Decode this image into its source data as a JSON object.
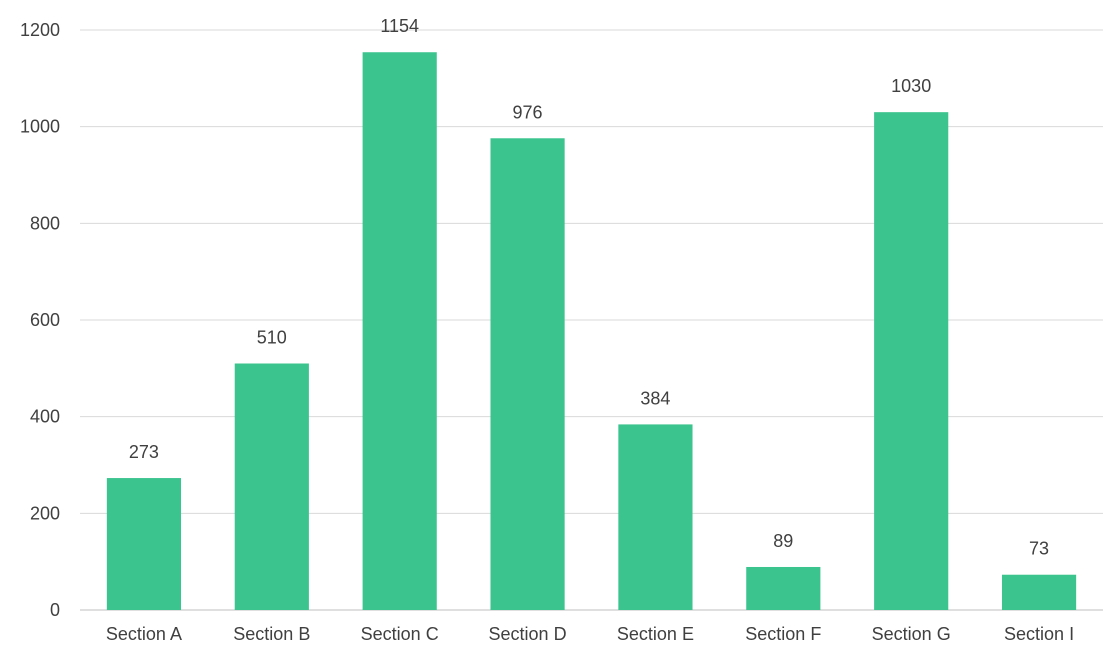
{
  "chart_data": {
    "type": "bar",
    "title": "",
    "xlabel": "",
    "ylabel": "",
    "categories": [
      "Section A",
      "Section B",
      "Section C",
      "Section D",
      "Section E",
      "Section F",
      "Section G",
      "Section I"
    ],
    "values": [
      273,
      510,
      1154,
      976,
      384,
      89,
      1030,
      73
    ],
    "ylim": [
      0,
      1200
    ],
    "yticks": [
      0,
      200,
      400,
      600,
      800,
      1000,
      1200
    ],
    "grid": true,
    "legend": "none",
    "bar_color": "#3cc48e"
  }
}
